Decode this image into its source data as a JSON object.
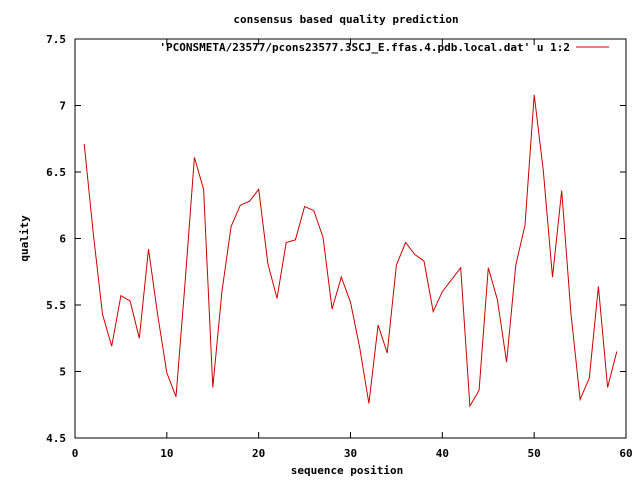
{
  "chart_data": {
    "type": "line",
    "title": "consensus based quality prediction",
    "xlabel": "sequence position",
    "ylabel": "quality",
    "xlim": [
      0,
      60
    ],
    "ylim": [
      4.5,
      7.5
    ],
    "xticks": [
      0,
      10,
      20,
      30,
      40,
      50,
      60
    ],
    "yticks": [
      4.5,
      5,
      5.5,
      6,
      6.5,
      7,
      7.5
    ],
    "xtick_labels": [
      "0",
      "10",
      "20",
      "30",
      "40",
      "50",
      "60"
    ],
    "ytick_labels": [
      "4.5",
      "5",
      "5.5",
      "6",
      "6.5",
      "7",
      "7.5"
    ],
    "grid": false,
    "legend_position": "top-right",
    "series": [
      {
        "name": "'PCONSMETA/23577/pcons23577.3SCJ_E.ffas.4.pdb.local.dat' u 1:2",
        "color": "#cc0000",
        "x": [
          1,
          2,
          3,
          4,
          5,
          6,
          7,
          8,
          9,
          10,
          11,
          12,
          13,
          14,
          15,
          16,
          17,
          18,
          19,
          20,
          21,
          22,
          23,
          24,
          25,
          26,
          27,
          28,
          29,
          30,
          31,
          32,
          33,
          34,
          35,
          36,
          37,
          38,
          39,
          40,
          41,
          42,
          43,
          44,
          45,
          46,
          47,
          48,
          49,
          50,
          51,
          52,
          53,
          54,
          55,
          56,
          57,
          58,
          59
        ],
        "y": [
          6.71,
          6.03,
          5.43,
          5.19,
          5.57,
          5.53,
          5.25,
          5.92,
          5.43,
          4.99,
          4.81,
          5.68,
          6.61,
          6.37,
          4.88,
          5.6,
          6.09,
          6.25,
          6.28,
          6.37,
          5.81,
          5.55,
          5.97,
          5.99,
          6.24,
          6.21,
          6.01,
          5.47,
          5.71,
          5.52,
          5.18,
          4.76,
          5.35,
          5.14,
          5.8,
          5.97,
          5.88,
          5.83,
          5.45,
          5.6,
          5.69,
          5.78,
          4.74,
          4.86,
          5.78,
          5.54,
          5.07,
          5.8,
          6.1,
          7.08,
          6.51,
          5.71,
          6.36,
          5.44,
          4.79,
          4.95,
          5.64,
          4.88,
          5.15
        ]
      }
    ]
  }
}
